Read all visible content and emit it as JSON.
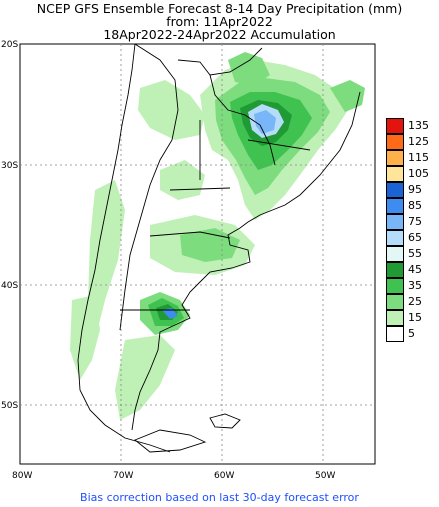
{
  "title": {
    "line1": "NCEP GFS Ensemble Forecast 8-14 Day Precipitation (mm)",
    "line2": "from: 11Apr2022",
    "line3": "18Apr2022-24Apr2022 Accumulation"
  },
  "axes": {
    "lat_labels": [
      "20S",
      "30S",
      "40S",
      "50S"
    ],
    "lon_labels": [
      "80W",
      "70W",
      "60W",
      "50W"
    ]
  },
  "legend": [
    {
      "label": "135",
      "color": "#e3140e"
    },
    {
      "label": "125",
      "color": "#ff6a18"
    },
    {
      "label": "115",
      "color": "#ffb04a"
    },
    {
      "label": "105",
      "color": "#ffe59a"
    },
    {
      "label": "95",
      "color": "#1b63d4"
    },
    {
      "label": "85",
      "color": "#3f8cf0"
    },
    {
      "label": "75",
      "color": "#79b6f7"
    },
    {
      "label": "65",
      "color": "#b5dcf8"
    },
    {
      "label": "55",
      "color": "#e3f7f5"
    },
    {
      "label": "45",
      "color": "#209a35"
    },
    {
      "label": "35",
      "color": "#3fc24f"
    },
    {
      "label": "25",
      "color": "#7ddc7d"
    },
    {
      "label": "15",
      "color": "#bff0b6"
    },
    {
      "label": "5",
      "color": "#ffffff"
    }
  ],
  "footer": "Bias correction based on last 30-day forecast error"
}
